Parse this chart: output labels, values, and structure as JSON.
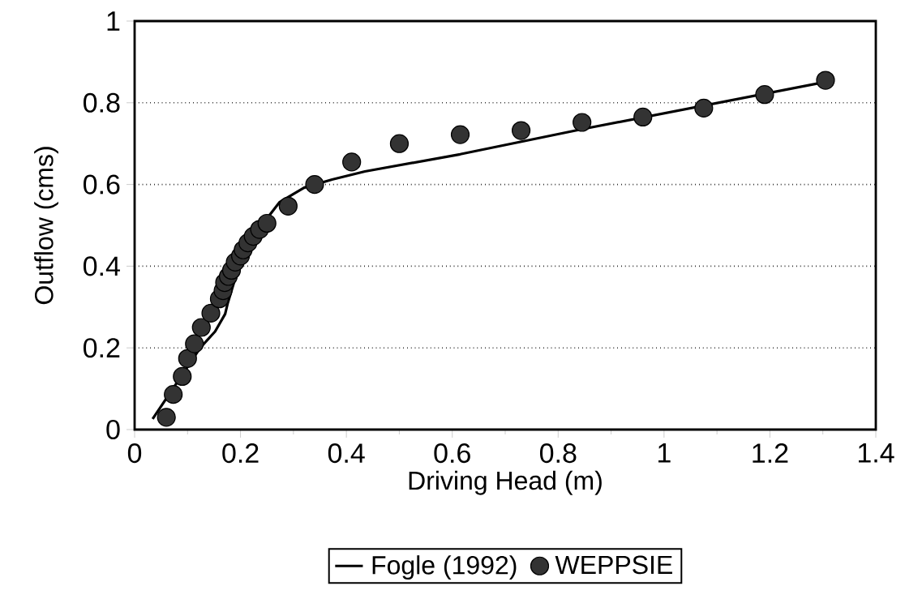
{
  "chart_data": {
    "type": "scatter",
    "xlabel": "Driving Head (m)",
    "ylabel": "Outflow (cms)",
    "xlim": [
      0,
      1.4
    ],
    "ylim": [
      0,
      1
    ],
    "xticks": [
      0,
      0.2,
      0.4,
      0.6,
      0.8,
      1,
      1.2,
      1.4
    ],
    "yticks": [
      0,
      0.2,
      0.4,
      0.6,
      0.8,
      1
    ],
    "grid": "y",
    "legend": "bottom",
    "series": [
      {
        "name": "Fogle (1992)",
        "type": "line",
        "color": "#000000",
        "marker": "none",
        "line_style": "solid",
        "x": [
          0.034,
          0.124,
          0.152,
          0.171,
          0.176,
          0.19,
          0.22,
          0.25,
          0.274,
          0.32,
          0.373,
          0.435,
          0.615,
          0.848,
          1.305
        ],
        "values": [
          0.026,
          0.2,
          0.24,
          0.283,
          0.31,
          0.37,
          0.457,
          0.517,
          0.557,
          0.592,
          0.612,
          0.632,
          0.674,
          0.736,
          0.851
        ]
      },
      {
        "name": "WEPPSIE",
        "color": "#333333",
        "marker": "circle",
        "x": [
          0.06,
          0.073,
          0.09,
          0.1,
          0.113,
          0.126,
          0.144,
          0.16,
          0.167,
          0.17,
          0.177,
          0.183,
          0.19,
          0.2,
          0.205,
          0.214,
          0.224,
          0.236,
          0.25,
          0.29,
          0.34,
          0.41,
          0.5,
          0.615,
          0.73,
          0.845,
          0.96,
          1.075,
          1.19,
          1.305
        ],
        "values": [
          0.03,
          0.086,
          0.13,
          0.174,
          0.21,
          0.25,
          0.285,
          0.32,
          0.34,
          0.36,
          0.375,
          0.39,
          0.41,
          0.425,
          0.44,
          0.457,
          0.473,
          0.49,
          0.505,
          0.547,
          0.6,
          0.655,
          0.7,
          0.722,
          0.732,
          0.752,
          0.765,
          0.787,
          0.82,
          0.855
        ]
      }
    ]
  }
}
